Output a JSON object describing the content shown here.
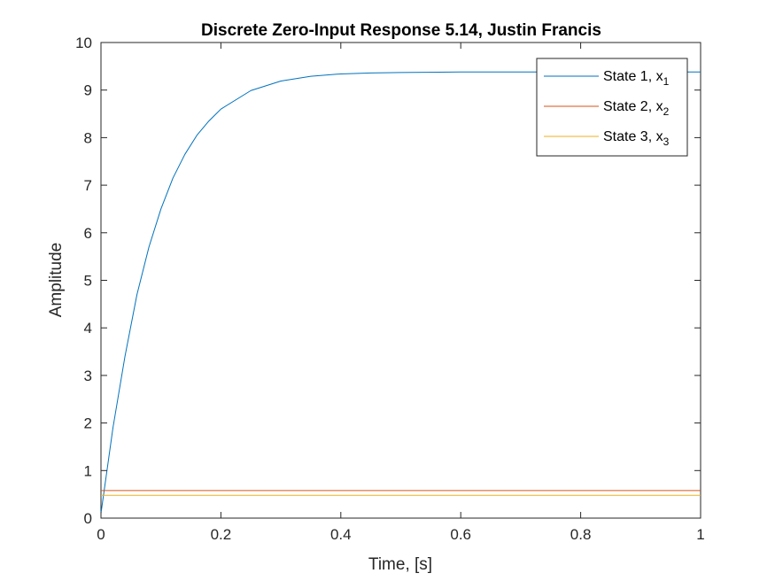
{
  "chart_data": {
    "type": "line",
    "title": "Discrete Zero-Input Response 5.14, Justin Francis",
    "xlabel": "Time, [s]",
    "ylabel": "Amplitude",
    "xlim": [
      0,
      1
    ],
    "ylim": [
      0,
      10
    ],
    "xticks": [
      "0",
      "0.2",
      "0.4",
      "0.6",
      "0.8",
      "1"
    ],
    "yticks": [
      "0",
      "1",
      "2",
      "3",
      "4",
      "5",
      "6",
      "7",
      "8",
      "9",
      "10"
    ],
    "grid": false,
    "legend_position": "top-right",
    "series": [
      {
        "name": "State 1, x",
        "subscript": "1",
        "color": "#0072BD",
        "x": [
          0,
          0.02,
          0.04,
          0.06,
          0.08,
          0.1,
          0.12,
          0.14,
          0.16,
          0.18,
          0.2,
          0.25,
          0.3,
          0.35,
          0.4,
          0.45,
          0.5,
          0.6,
          0.7,
          0.8,
          0.9,
          1.0
        ],
        "y": [
          0.1,
          1.9,
          3.4,
          4.7,
          5.7,
          6.5,
          7.15,
          7.65,
          8.05,
          8.35,
          8.6,
          8.99,
          9.19,
          9.29,
          9.34,
          9.36,
          9.37,
          9.38,
          9.38,
          9.38,
          9.38,
          9.38
        ]
      },
      {
        "name": "State 2, x",
        "subscript": "2",
        "color": "#D95319",
        "x": [
          0,
          1
        ],
        "y": [
          0.58,
          0.58
        ]
      },
      {
        "name": "State 3, x",
        "subscript": "3",
        "color": "#EDB120",
        "x": [
          0,
          1
        ],
        "y": [
          0.48,
          0.48
        ]
      }
    ]
  }
}
